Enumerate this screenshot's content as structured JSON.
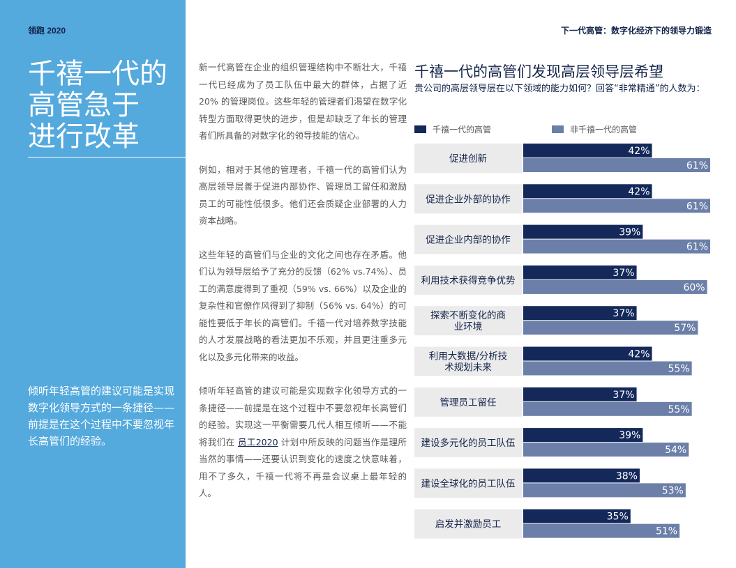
{
  "page": {
    "brand": "领跑 2020",
    "header_title": "下一代高管：数字化经济下的领导力锻造"
  },
  "sidebar": {
    "headline_lines": [
      "千禧一代的",
      "高管急于",
      "进行改革"
    ],
    "quote": "倾听年轻高管的建议可能是实现数字化领导方式的一条捷径——前提是在这个过程中不要忽视年长高管们的经验。"
  },
  "body": {
    "p1": "新一代高管在企业的组织管理结构中不断壮大，千禧一代已经成为了员工队伍中最大的群体，占据了近 20% 的管理岗位。这些年轻的管理者们渴望在数字化转型方面取得更快的进步，但是却缺乏了年长的管理者们所具备的对数字化的领导技能的信心。",
    "p2": "例如，相对于其他的管理者，千禧一代的高管们认为高层领导层善于促进内部协作、管理员工留任和激励员工的可能性低很多。他们还会质疑企业部署的人力资本战略。",
    "p3": "这些年轻的高管们与企业的文化之间也存在矛盾。他们认为领导层给予了充分的反馈（62% vs.74%）、员工的满意度得到了重视（59% vs. 66%）以及企业的复杂性和官僚作风得到了抑制（56% vs. 64%）的可能性要低于年长的高管们。千禧一代对培养数字技能的人才发展战略的看法更加不乐观，并且更注重多元化以及多元化带来的收益。",
    "p4_before": "倾听年轻高管的建议可能是实现数字化领导方式的一条捷径——前提是在这个过程中不要忽视年长高管们的经验。实现这一平衡需要几代人相互倾听——不能将我们在 ",
    "p4_link": "员工2020",
    "p4_after": " 计划中所反映的问题当作是理所当然的事情——还要认识到变化的速度之快意味着，用不了多久，千禧一代将不再是会议桌上最年轻的人。"
  },
  "chart_data": {
    "type": "bar",
    "orientation": "horizontal",
    "title": "千禧一代的高管们发现高层领导层希望",
    "subtitle": "贵公司的高层领导层在以下领域的能力如何？回答“非常精通”的人数为：",
    "categories": [
      "促进创新",
      "促进企业外部的协作",
      "促进企业内部的协作",
      "利用技术获得竞争优势",
      "探索不断变化的商业环境",
      "利用大数据/分析技术规划未来",
      "管理员工留任",
      "建设多元化的员工队伍",
      "建设全球化的员工队伍",
      "启发并激励员工"
    ],
    "category_lines": [
      [
        "促进创新"
      ],
      [
        "促进企业外部的协作"
      ],
      [
        "促进企业内部的协作"
      ],
      [
        "利用技术获得竞争优势"
      ],
      [
        "探索不断变化的商",
        "业环境"
      ],
      [
        "利用大数据/分析技",
        "术规划未来"
      ],
      [
        "管理员工留任"
      ],
      [
        "建设多元化的员工队伍"
      ],
      [
        "建设全球化的员工队伍"
      ],
      [
        "启发并激励员工"
      ]
    ],
    "series": [
      {
        "name": "千禧一代的高管",
        "color": "#14295a",
        "values": [
          42,
          42,
          39,
          37,
          37,
          42,
          37,
          39,
          38,
          35
        ],
        "labels": [
          "42%",
          "42%",
          "39%",
          "37%",
          "37%",
          "42%",
          "37%",
          "39%",
          "38%",
          "35%"
        ]
      },
      {
        "name": "非千禧一代的高管",
        "color": "#6b7fa8",
        "values": [
          61,
          61,
          61,
          60,
          57,
          55,
          55,
          54,
          53,
          51
        ],
        "labels": [
          "61%",
          "61%",
          "61%",
          "60%",
          "57%",
          "55%",
          "55%",
          "54%",
          "53%",
          "51%"
        ]
      }
    ],
    "xlim": [
      0,
      61
    ],
    "legend_position": "top"
  }
}
